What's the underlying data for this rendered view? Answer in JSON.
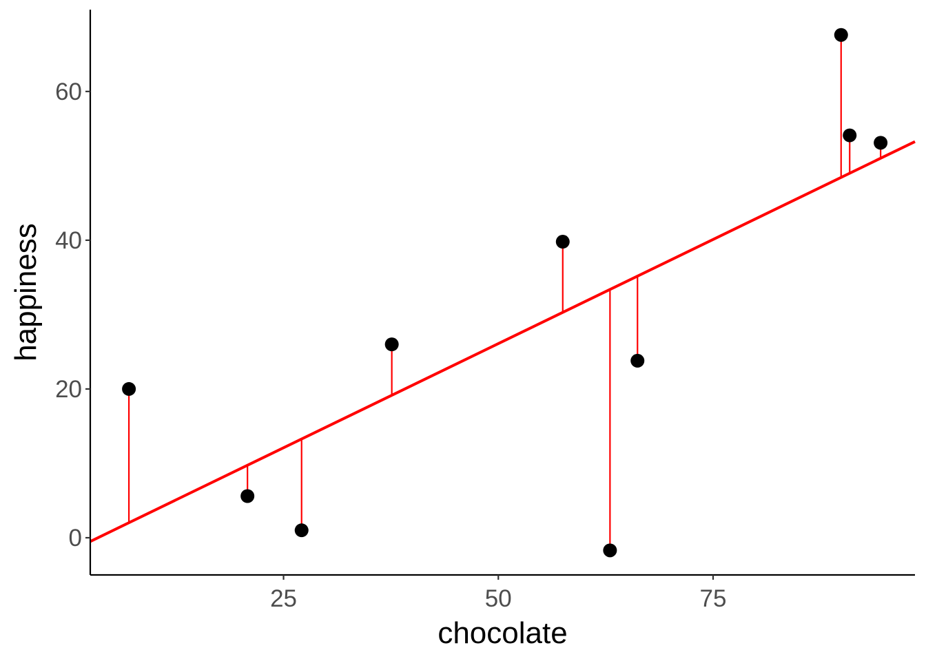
{
  "chart_data": {
    "type": "scatter",
    "title": "",
    "xlabel": "chocolate",
    "ylabel": "happiness",
    "xlim": [
      2.5,
      98.5
    ],
    "ylim": [
      -5,
      71
    ],
    "xticks": [
      25,
      50,
      75
    ],
    "xtick_labels": [
      "25",
      "50",
      "75"
    ],
    "yticks": [
      0,
      20,
      40,
      60
    ],
    "ytick_labels": [
      "0",
      "20",
      "40",
      "60"
    ],
    "grid": false,
    "points": [
      {
        "x": 7,
        "y": 20
      },
      {
        "x": 20.8,
        "y": 5.6
      },
      {
        "x": 27.1,
        "y": 1.0
      },
      {
        "x": 37.6,
        "y": 26.0
      },
      {
        "x": 57.5,
        "y": 39.8
      },
      {
        "x": 63.0,
        "y": -1.7
      },
      {
        "x": 66.2,
        "y": 23.8
      },
      {
        "x": 89.9,
        "y": 67.6
      },
      {
        "x": 90.9,
        "y": 54.1
      },
      {
        "x": 94.5,
        "y": 53.1
      }
    ],
    "fit_line": {
      "intercept": -1.9,
      "slope": 0.56
    },
    "colors": {
      "points": "#000000",
      "fit_line": "#ff0000",
      "residuals": "#ff0000",
      "axis": "#000000"
    }
  }
}
